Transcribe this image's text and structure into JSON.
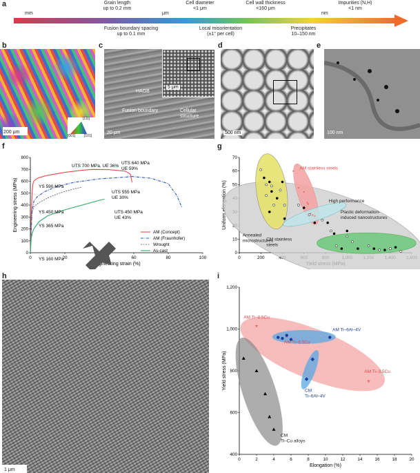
{
  "scale_bar": {
    "panel_label": "a",
    "units": [
      "mm",
      "μm",
      "nm"
    ],
    "top_labels": [
      "Grain length\nup to 0.2 mm",
      "Cell diameter\n<1 μm",
      "Cell wall thickness\n<160 μm",
      "Impurities (N,H)\n<1 nm"
    ],
    "bottom_labels": [
      "Fusion boundary spacing\nup to 0.1 mm",
      "Local misorientation\n(±1° per cell)",
      "Precipitates\n10–150 nm"
    ]
  },
  "micrographs": {
    "b": {
      "label": "b",
      "scale": "200 μm",
      "key": [
        "[111]",
        "[001]",
        "[101]"
      ]
    },
    "c": {
      "label": "c",
      "scale": "20 μm",
      "inset_scale": "5 μm",
      "annotations": [
        "HAGB",
        "Fusion boundary",
        "Cellular\nstructure"
      ]
    },
    "d": {
      "label": "d",
      "scale": "500 nm"
    },
    "e": {
      "label": "e",
      "scale": "100 nm"
    },
    "h": {
      "label": "h",
      "scale": "1 μm"
    }
  },
  "colors": {
    "am_concept": "#e8474a",
    "am_fraunhofer": "#2b54b8",
    "wrought": "#777777",
    "as_cast": "#2fa86a",
    "yellow": "#e6e36e",
    "pink": "#f4a6a6",
    "teal": "#bfe6ea",
    "green": "#6dc97c",
    "grey": "#cfcfcf",
    "blue_ellipse": "#5aa8e6"
  },
  "chart_data": [
    {
      "panel": "f",
      "type": "line",
      "xlabel": "Engineering strain (%)",
      "ylabel": "Engineering stress (MPa)",
      "xlim": [
        0,
        100
      ],
      "ylim": [
        0,
        800
      ],
      "xticks": [
        0,
        20,
        40,
        60,
        80,
        100
      ],
      "yticks": [
        0,
        100,
        200,
        300,
        400,
        500,
        600,
        700,
        800
      ],
      "series": [
        {
          "name": "AM (Concept)",
          "x": [
            0,
            0.5,
            1,
            1.5,
            2,
            3,
            5,
            10,
            20,
            30,
            36,
            45,
            55,
            58,
            59
          ],
          "y": [
            0,
            300,
            500,
            580,
            600,
            615,
            630,
            650,
            675,
            692,
            700,
            698,
            685,
            660,
            590
          ]
        },
        {
          "name": "AM (Fraunhofer)",
          "x": [
            0,
            1,
            2,
            4,
            8,
            15,
            25,
            40,
            55,
            59,
            70,
            80,
            85,
            88
          ],
          "y": [
            0,
            350,
            430,
            470,
            510,
            555,
            590,
            620,
            635,
            640,
            625,
            580,
            480,
            375
          ]
        },
        {
          "name": "Wrought",
          "x": [
            0,
            0.5,
            1,
            2,
            5,
            10,
            15,
            20,
            25,
            30
          ],
          "y": [
            0,
            250,
            340,
            385,
            420,
            460,
            490,
            515,
            535,
            550
          ]
        },
        {
          "name": "As-cast",
          "x": [
            0,
            0.5,
            1,
            2,
            5,
            10,
            20,
            30,
            40,
            43
          ],
          "y": [
            0,
            120,
            160,
            200,
            260,
            310,
            360,
            400,
            440,
            450
          ]
        }
      ],
      "annotations": [
        "UTS 700 MPa, UE 36%",
        "UTS 640 MPa\nUE 59%",
        "YS 590 MPa",
        "UTS 555 MPa\nUE 30%",
        "YS 450 MPa",
        "UTS 450 MPa\nUE 43%",
        "YS 365 MPa",
        "YS 160 MPa"
      ],
      "legend": "bottom-right"
    },
    {
      "panel": "g",
      "type": "scatter",
      "xlabel": "Yield stress (MPa)",
      "ylabel": "Uniform elongation (%)",
      "xlim": [
        0,
        1600
      ],
      "ylim": [
        0,
        70
      ],
      "xticks": [
        0,
        200,
        400,
        600,
        800,
        1000,
        1200,
        1400,
        1600
      ],
      "yticks": [
        0,
        10,
        20,
        30,
        40,
        50,
        60,
        70
      ],
      "regions": [
        "Annealed\nmicrostructures",
        "AM stainless steels",
        "High performance",
        "Plastic deformation-\ninduced nanostructures",
        "CM stainless\nsteels"
      ],
      "series": [
        {
          "name": "AM stainless steels",
          "x": [
            500,
            550,
            600,
            630,
            640,
            660,
            680,
            700
          ],
          "y": [
            59,
            47,
            44,
            36,
            35,
            28,
            27,
            26
          ]
        },
        {
          "name": "Annealed microstructures",
          "x": [
            200,
            230,
            250,
            280,
            300,
            300,
            320,
            350,
            380,
            400,
            420,
            420,
            250,
            280
          ],
          "y": [
            61,
            55,
            50,
            52,
            49,
            45,
            35,
            40,
            46,
            52,
            35,
            25,
            42,
            30
          ]
        },
        {
          "name": "High performance",
          "x": [
            550,
            600,
            650,
            700,
            770,
            820
          ],
          "y": [
            35,
            33,
            28,
            22,
            24,
            22
          ]
        },
        {
          "name": "Plastic deformation-induced nanostructures",
          "x": [
            850,
            880,
            900,
            950,
            1000,
            1000,
            1050,
            1100,
            1200,
            1250,
            1300,
            1350,
            1400,
            1450,
            1500
          ],
          "y": [
            16,
            14,
            5,
            3,
            12,
            16,
            8,
            3,
            5,
            3,
            2,
            2,
            3,
            4,
            1
          ]
        }
      ]
    },
    {
      "panel": "i",
      "type": "scatter",
      "xlabel": "Elongation (%)",
      "ylabel": "Yield stress (MPa)",
      "xlim": [
        0,
        20
      ],
      "ylim": [
        400,
        1200
      ],
      "xticks": [
        0,
        2,
        4,
        6,
        8,
        10,
        12,
        14,
        16,
        18,
        20
      ],
      "yticks": [
        400,
        600,
        800,
        1000,
        1200
      ],
      "series": [
        {
          "name": "AM Ti–8.5Cu",
          "x": [
            2
          ],
          "y": [
            1010
          ]
        },
        {
          "name": "AM Ti–6.5Cu",
          "x": [
            5.5
          ],
          "y": [
            960
          ]
        },
        {
          "name": "AM Ti–3.5Cu",
          "x": [
            15
          ],
          "y": [
            745
          ]
        },
        {
          "name": "AM Ti–6Al–4V",
          "x": [
            4.5,
            5,
            5.5,
            6,
            10.5
          ],
          "y": [
            960,
            955,
            970,
            950,
            960
          ]
        },
        {
          "name": "CM Ti–6Al–4V",
          "x": [
            7.8,
            8.5
          ],
          "y": [
            760,
            855
          ]
        },
        {
          "name": "CM Ti–Cu alloys",
          "x": [
            0.5,
            2,
            3,
            3.5,
            4
          ],
          "y": [
            860,
            800,
            690,
            580,
            520
          ]
        }
      ]
    }
  ]
}
